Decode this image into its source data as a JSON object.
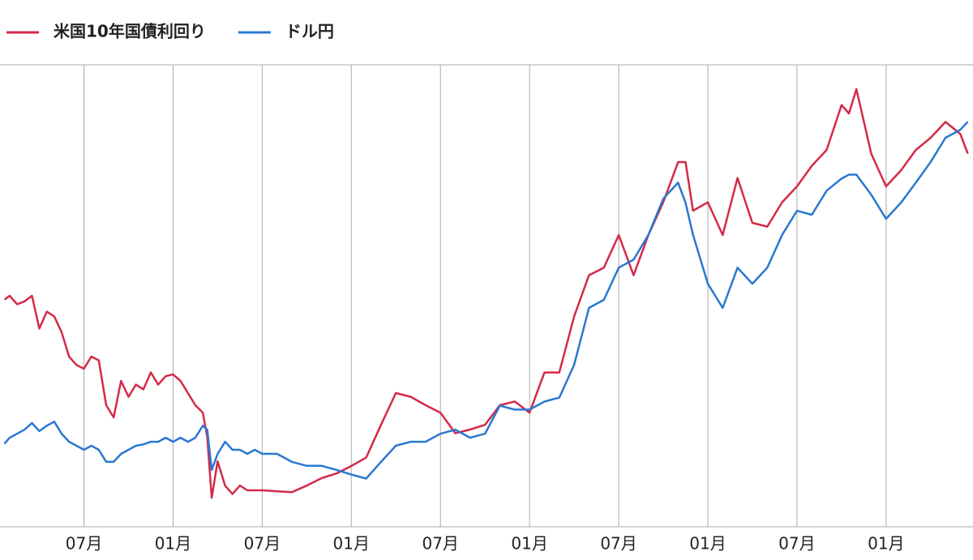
{
  "chart_data": {
    "type": "line",
    "x": [
      0.65,
      1,
      1.5,
      2,
      2.5,
      3,
      3.5,
      4,
      4.5,
      5,
      5.5,
      6,
      6.5,
      7,
      7.5,
      8,
      8.5,
      9,
      9.5,
      10,
      10.5,
      11,
      11.5,
      12,
      12.5,
      13,
      13.5,
      14,
      14.3,
      14.6,
      15,
      15.5,
      16,
      16.5,
      17,
      17.5,
      18,
      19,
      20,
      21,
      22,
      23,
      24,
      25,
      26,
      27,
      28,
      29,
      30,
      31,
      32,
      33,
      34,
      35,
      36,
      37,
      38,
      39,
      40,
      41,
      42,
      43,
      44,
      45,
      46,
      46.5,
      47,
      48,
      49,
      50,
      51,
      52,
      53,
      54,
      55,
      56,
      57,
      57.5,
      58,
      59,
      60,
      61,
      62,
      63,
      64,
      65,
      65.5
    ],
    "xlim": [
      0.35,
      65.85
    ],
    "xticks": [
      {
        "value": 6,
        "label": "07月"
      },
      {
        "value": 12,
        "label": "01月"
      },
      {
        "value": 18,
        "label": "07月"
      },
      {
        "value": 24,
        "label": "01月"
      },
      {
        "value": 30,
        "label": "07月"
      },
      {
        "value": 36,
        "label": "01月"
      },
      {
        "value": 42,
        "label": "07月"
      },
      {
        "value": 48,
        "label": "01月"
      },
      {
        "value": 54,
        "label": "07月"
      },
      {
        "value": 60,
        "label": "01月"
      }
    ],
    "ylim": [
      0.24,
      5.18
    ],
    "y2lim": [
      96,
      165
    ],
    "grid": true,
    "series": [
      {
        "name": "米国10年国債利回り",
        "color": "#d42a48",
        "values": [
          2.67,
          2.71,
          2.62,
          2.65,
          2.71,
          2.36,
          2.54,
          2.49,
          2.32,
          2.06,
          1.97,
          1.93,
          2.06,
          2.02,
          1.54,
          1.41,
          1.8,
          1.63,
          1.76,
          1.71,
          1.89,
          1.76,
          1.85,
          1.87,
          1.8,
          1.67,
          1.54,
          1.46,
          1.2,
          0.55,
          0.94,
          0.68,
          0.59,
          0.68,
          0.63,
          0.63,
          0.63,
          0.62,
          0.61,
          0.68,
          0.76,
          0.81,
          0.89,
          0.98,
          1.33,
          1.67,
          1.63,
          1.54,
          1.46,
          1.24,
          1.28,
          1.33,
          1.54,
          1.58,
          1.46,
          1.89,
          1.89,
          2.49,
          2.93,
          3.01,
          3.36,
          2.93,
          3.36,
          3.71,
          4.14,
          4.14,
          3.62,
          3.71,
          3.36,
          3.97,
          3.49,
          3.45,
          3.71,
          3.88,
          4.1,
          4.27,
          4.75,
          4.66,
          4.92,
          4.23,
          3.88,
          4.05,
          4.27,
          4.4,
          4.57,
          4.44,
          4.23
        ]
      },
      {
        "name": "ドル円",
        "color": "#2a78d0",
        "axis": "y2",
        "values": [
          108.4,
          109.3,
          109.9,
          110.5,
          111.5,
          110.3,
          111.1,
          111.7,
          109.9,
          108.7,
          108.1,
          107.5,
          108.1,
          107.5,
          105.7,
          105.7,
          106.9,
          107.5,
          108.1,
          108.3,
          108.7,
          108.7,
          109.3,
          108.7,
          109.3,
          108.7,
          109.3,
          111.1,
          110.5,
          104.5,
          106.9,
          108.7,
          107.5,
          107.5,
          106.9,
          107.5,
          106.9,
          106.9,
          105.7,
          105.1,
          105.1,
          104.5,
          103.8,
          103.2,
          105.7,
          108.1,
          108.7,
          108.7,
          109.9,
          110.5,
          109.3,
          109.9,
          114.1,
          113.5,
          113.5,
          114.7,
          115.3,
          120.2,
          128.7,
          129.9,
          134.7,
          135.9,
          139.6,
          145.0,
          147.4,
          144.4,
          139.6,
          132.3,
          128.7,
          134.7,
          132.3,
          134.7,
          139.6,
          143.2,
          142.6,
          146.2,
          148.0,
          148.6,
          148.6,
          145.6,
          142.0,
          144.4,
          147.4,
          150.5,
          154.1,
          155.3,
          156.5
        ]
      }
    ]
  }
}
